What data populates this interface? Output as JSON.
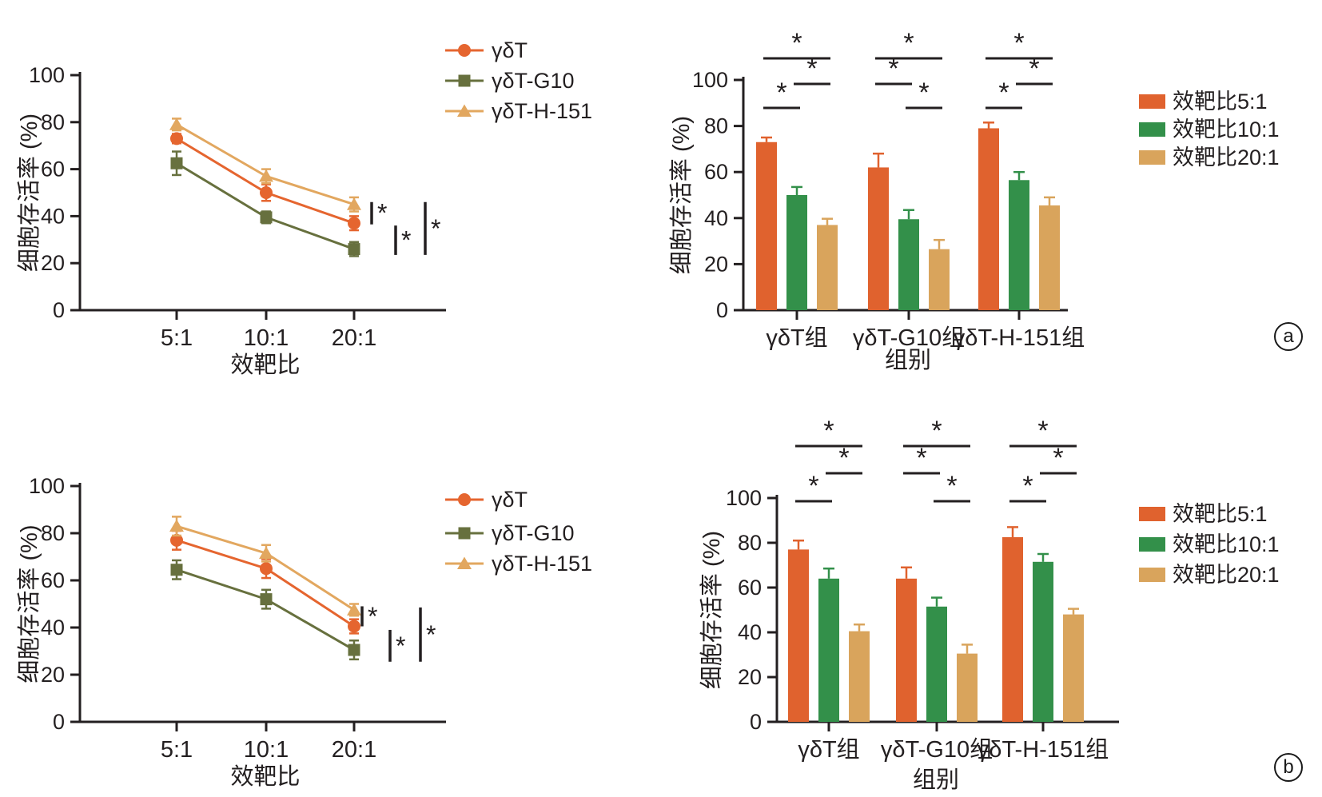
{
  "colors": {
    "axis": "#231F20",
    "line_orange": "#E5652F",
    "line_olive": "#67703E",
    "line_tan": "#E2A75F",
    "bar_orange": "#E0622E",
    "bar_green": "#33904A",
    "bar_tan": "#D9A45C"
  },
  "panel_labels": {
    "a": "a",
    "b": "b"
  },
  "chart_data": [
    {
      "id": "line-a",
      "panel": "a",
      "type": "line",
      "title": "",
      "xlabel": "效靶比",
      "ylabel": "细胞存活率 (%)",
      "categories": [
        "5:1",
        "10:1",
        "20:1"
      ],
      "ylim": [
        0,
        100
      ],
      "yticks": [
        0,
        20,
        40,
        60,
        80,
        100
      ],
      "grid": false,
      "legend_position": "right-top",
      "series": [
        {
          "name": "γδT",
          "color": "#E5652F",
          "marker": "circle",
          "values": [
            73,
            50,
            37
          ],
          "errors": [
            2,
            3.5,
            3
          ]
        },
        {
          "name": "γδT-G10",
          "color": "#67703E",
          "marker": "square",
          "values": [
            62.5,
            39.5,
            26
          ],
          "errors": [
            5,
            2.5,
            3
          ]
        },
        {
          "name": "γδT-H-151",
          "color": "#E2A75F",
          "marker": "triangle",
          "values": [
            79,
            57,
            45
          ],
          "errors": [
            2.5,
            3,
            3
          ]
        }
      ],
      "sig_bars": [
        {
          "dx": 22,
          "v_from": 36.5,
          "v_to": 46,
          "label": "*"
        },
        {
          "dx": 52,
          "v_from": 23.5,
          "v_to": 36,
          "label": "*"
        },
        {
          "dx": 89,
          "v_from": 23.5,
          "v_to": 46,
          "label": "*"
        }
      ]
    },
    {
      "id": "bars-a",
      "panel": "a",
      "type": "bar",
      "title": "",
      "xlabel": "组别",
      "ylabel": "细胞存活率 (%)",
      "categories": [
        "γδT组",
        "γδT-G10组",
        "γδT-H-151组"
      ],
      "ylim": [
        0,
        100
      ],
      "yticks": [
        0,
        20,
        40,
        60,
        80,
        100
      ],
      "grid": false,
      "legend_position": "right-top",
      "series": [
        {
          "name": "效靶比5:1",
          "color": "#E0622E",
          "values": [
            73,
            62,
            79
          ],
          "errors": [
            2,
            6,
            2.5
          ]
        },
        {
          "name": "效靶比10:1",
          "color": "#33904A",
          "values": [
            50,
            39.5,
            56.5
          ],
          "errors": [
            3.5,
            4,
            3.5
          ]
        },
        {
          "name": "效靶比20:1",
          "color": "#D9A45C",
          "values": [
            37,
            26.5,
            45.5
          ],
          "errors": [
            2.7,
            4,
            3.5
          ]
        }
      ],
      "sig_brackets": [
        {
          "group": 0,
          "pair": [
            0,
            2
          ],
          "level": "top",
          "label": "*"
        },
        {
          "group": 0,
          "pair": [
            1,
            2
          ],
          "level": "mid",
          "label": "*"
        },
        {
          "group": 0,
          "pair": [
            0,
            1
          ],
          "level": "low",
          "label": "*"
        },
        {
          "group": 1,
          "pair": [
            0,
            2
          ],
          "level": "top",
          "label": "*"
        },
        {
          "group": 1,
          "pair": [
            0,
            1
          ],
          "level": "mid",
          "label": "*"
        },
        {
          "group": 1,
          "pair": [
            1,
            2
          ],
          "level": "low",
          "label": "*"
        },
        {
          "group": 2,
          "pair": [
            0,
            2
          ],
          "level": "top",
          "label": "*"
        },
        {
          "group": 2,
          "pair": [
            1,
            2
          ],
          "level": "mid",
          "label": "*"
        },
        {
          "group": 2,
          "pair": [
            0,
            1
          ],
          "level": "low",
          "label": "*"
        }
      ]
    },
    {
      "id": "line-b",
      "panel": "b",
      "type": "line",
      "title": "",
      "xlabel": "效靶比",
      "ylabel": "细胞存活率 (%)",
      "categories": [
        "5:1",
        "10:1",
        "20:1"
      ],
      "ylim": [
        0,
        100
      ],
      "yticks": [
        0,
        20,
        40,
        60,
        80,
        100
      ],
      "grid": false,
      "legend_position": "right-top",
      "series": [
        {
          "name": "γδT",
          "color": "#E5652F",
          "marker": "circle",
          "values": [
            77,
            65,
            40.5
          ],
          "errors": [
            4,
            4,
            3
          ]
        },
        {
          "name": "γδT-G10",
          "color": "#67703E",
          "marker": "square",
          "values": [
            64.5,
            52,
            30.5
          ],
          "errors": [
            4,
            4,
            4
          ]
        },
        {
          "name": "γδT-H-151",
          "color": "#E2A75F",
          "marker": "triangle",
          "values": [
            83,
            71.5,
            47.5
          ],
          "errors": [
            4,
            3.5,
            2.5
          ]
        }
      ],
      "sig_bars": [
        {
          "dx": 10,
          "v_from": 40.5,
          "v_to": 49,
          "label": "*"
        },
        {
          "dx": 45,
          "v_from": 25.5,
          "v_to": 39,
          "label": "*"
        },
        {
          "dx": 83,
          "v_from": 25.5,
          "v_to": 48.5,
          "label": "*"
        }
      ]
    },
    {
      "id": "bars-b",
      "panel": "b",
      "type": "bar",
      "title": "",
      "xlabel": "组别",
      "ylabel": "细胞存活率 (%)",
      "categories": [
        "γδT组",
        "γδT-G10组",
        "γδT-H-151组"
      ],
      "ylim": [
        0,
        100
      ],
      "yticks": [
        0,
        20,
        40,
        60,
        80,
        100
      ],
      "grid": false,
      "legend_position": "right-top",
      "series": [
        {
          "name": "效靶比5:1",
          "color": "#E0622E",
          "values": [
            77,
            64,
            82.5
          ],
          "errors": [
            4,
            5,
            4.5
          ]
        },
        {
          "name": "效靶比10:1",
          "color": "#33904A",
          "values": [
            64,
            51.5,
            71.5
          ],
          "errors": [
            4.5,
            4,
            3.5
          ]
        },
        {
          "name": "效靶比20:1",
          "color": "#D9A45C",
          "values": [
            40.5,
            30.5,
            48
          ],
          "errors": [
            3,
            4,
            2.5
          ]
        }
      ],
      "sig_brackets": [
        {
          "group": 0,
          "pair": [
            0,
            2
          ],
          "level": "top",
          "label": "*"
        },
        {
          "group": 0,
          "pair": [
            1,
            2
          ],
          "level": "mid",
          "label": "*"
        },
        {
          "group": 0,
          "pair": [
            0,
            1
          ],
          "level": "low",
          "label": "*"
        },
        {
          "group": 1,
          "pair": [
            0,
            2
          ],
          "level": "top",
          "label": "*"
        },
        {
          "group": 1,
          "pair": [
            0,
            1
          ],
          "level": "mid",
          "label": "*"
        },
        {
          "group": 1,
          "pair": [
            1,
            2
          ],
          "level": "low",
          "label": "*"
        },
        {
          "group": 2,
          "pair": [
            0,
            2
          ],
          "level": "top",
          "label": "*"
        },
        {
          "group": 2,
          "pair": [
            1,
            2
          ],
          "level": "mid",
          "label": "*"
        },
        {
          "group": 2,
          "pair": [
            0,
            1
          ],
          "level": "low",
          "label": "*"
        }
      ]
    }
  ]
}
